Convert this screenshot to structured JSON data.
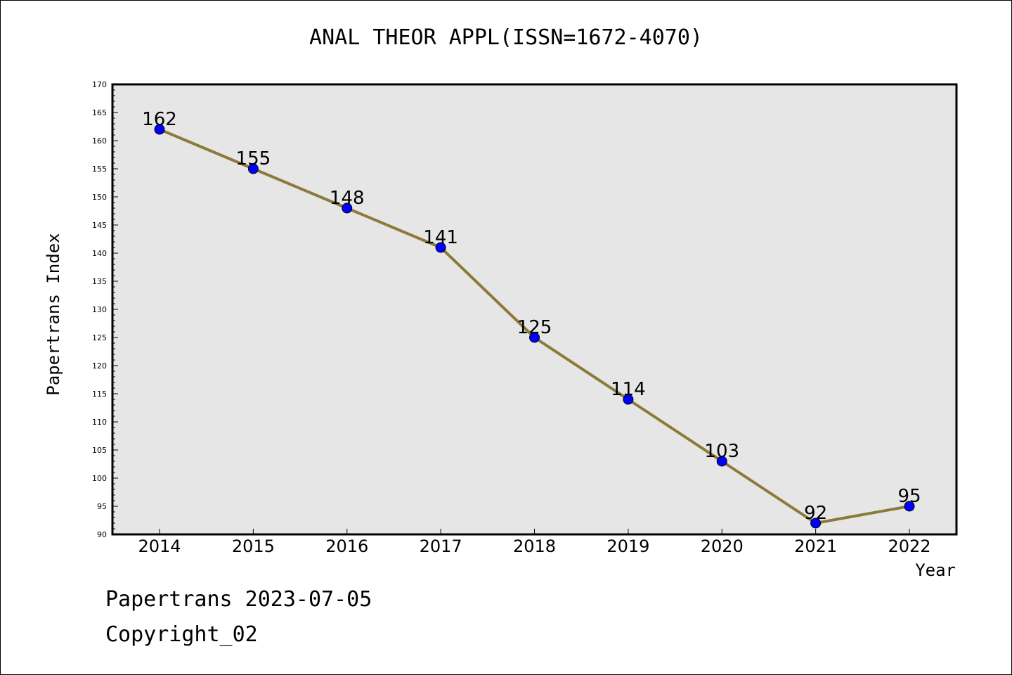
{
  "chart_data": {
    "type": "line",
    "title": "ANAL THEOR APPL(ISSN=1672-4070)",
    "xlabel": "Year",
    "ylabel": "Papertrans Index",
    "categories": [
      "2014",
      "2015",
      "2016",
      "2017",
      "2018",
      "2019",
      "2020",
      "2021",
      "2022"
    ],
    "series": [
      {
        "values": [
          162,
          155,
          148,
          141,
          125,
          114,
          103,
          92,
          95
        ]
      }
    ],
    "ylim": [
      90,
      170
    ],
    "yticks": [
      90,
      95,
      100,
      105,
      110,
      115,
      120,
      125,
      130,
      135,
      140,
      145,
      150,
      155,
      160,
      165,
      170
    ],
    "grid": false,
    "colors": {
      "line": "#8c7a3a",
      "marker": "#0000ff",
      "plot_background": "#e6e6e6"
    }
  },
  "footer": {
    "line1": "Papertrans 2023-07-05",
    "line2": "Copyright_02"
  }
}
